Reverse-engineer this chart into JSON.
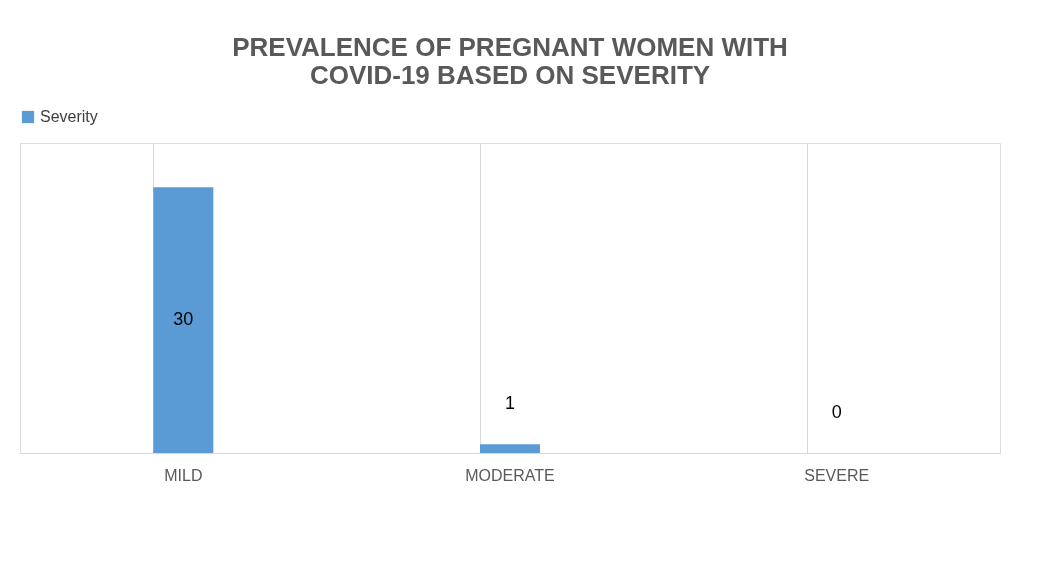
{
  "chart_data": {
    "type": "bar",
    "title": "PREVALENCE OF PREGNANT WOMEN WITH COVID-19 BASED ON SEVERITY",
    "categories": [
      "MILD",
      "MODERATE",
      "SEVERE"
    ],
    "series": [
      {
        "name": "Severity",
        "color": "#5b9bd5",
        "values": [
          30,
          1,
          0
        ]
      }
    ],
    "ylim": [
      0,
      35
    ],
    "data_labels": true,
    "grid": "x",
    "legend": "top",
    "tick_labels": "x"
  }
}
